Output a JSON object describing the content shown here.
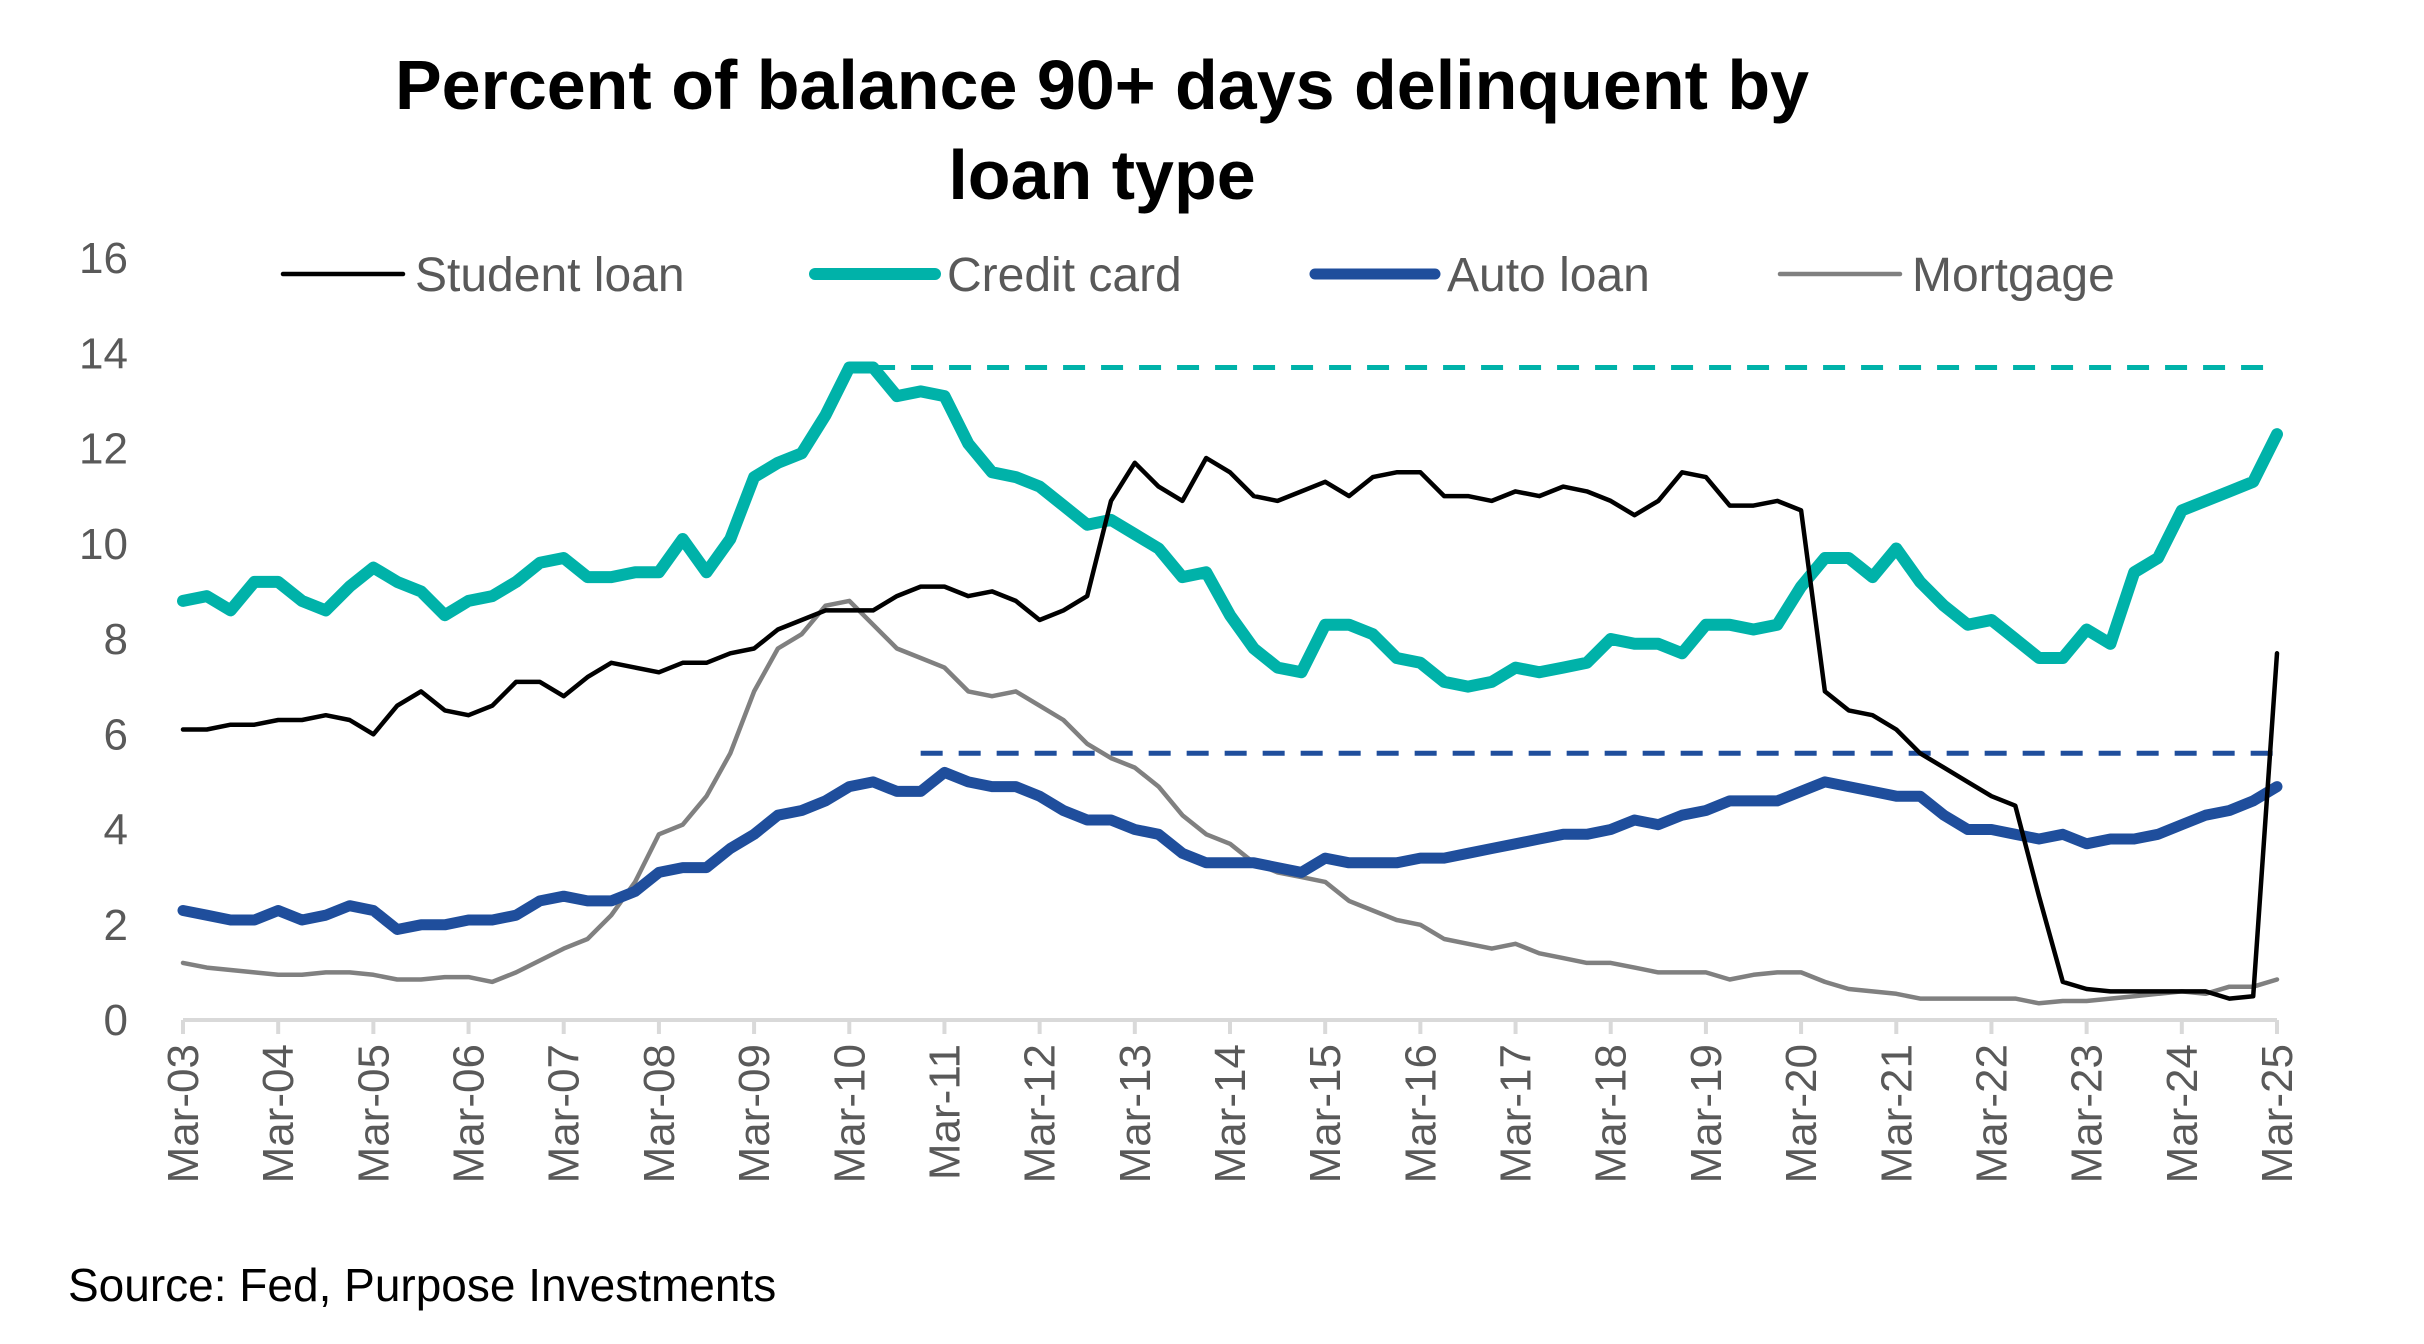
{
  "chart_data": {
    "type": "line",
    "title": "Percent of balance 90+ days delinquent by loan type",
    "title_lines": [
      "Percent of balance 90+ days delinquent by",
      "loan type"
    ],
    "source": "Source: Fed, Purpose Investments",
    "xlabel": "",
    "ylabel": "",
    "ylim": [
      0,
      16
    ],
    "yticks": [
      0,
      2,
      4,
      6,
      8,
      10,
      12,
      14,
      16
    ],
    "xticks": [
      "Mar-03",
      "Mar-04",
      "Mar-05",
      "Mar-06",
      "Mar-07",
      "Mar-08",
      "Mar-09",
      "Mar-10",
      "Mar-11",
      "Mar-12",
      "Mar-13",
      "Mar-14",
      "Mar-15",
      "Mar-16",
      "Mar-17",
      "Mar-18",
      "Mar-19",
      "Mar-20",
      "Mar-21",
      "Mar-22",
      "Mar-23",
      "Mar-24",
      "Mar-25"
    ],
    "x_frequency": "quarterly",
    "x_start": "Mar-03",
    "x_end": "Mar-25",
    "grid": false,
    "legend_position": "top",
    "series": [
      {
        "name": "Student loan",
        "color": "#000000",
        "values": [
          6.1,
          6.1,
          6.2,
          6.2,
          6.3,
          6.3,
          6.4,
          6.3,
          6.0,
          6.6,
          6.9,
          6.5,
          6.4,
          6.6,
          7.1,
          7.1,
          6.8,
          7.2,
          7.5,
          7.4,
          7.3,
          7.5,
          7.5,
          7.7,
          7.8,
          8.2,
          8.4,
          8.6,
          8.6,
          8.6,
          8.9,
          9.1,
          9.1,
          8.9,
          9.0,
          8.8,
          8.4,
          8.6,
          8.9,
          10.9,
          11.7,
          11.2,
          10.9,
          11.8,
          11.5,
          11.0,
          10.9,
          11.1,
          11.3,
          11.0,
          11.4,
          11.5,
          11.5,
          11.0,
          11.0,
          10.9,
          11.1,
          11.0,
          11.2,
          11.1,
          10.9,
          10.6,
          10.9,
          11.5,
          11.4,
          10.8,
          10.8,
          10.9,
          10.7,
          6.9,
          6.5,
          6.4,
          6.1,
          5.6,
          5.3,
          5.0,
          4.7,
          4.5,
          2.6,
          0.8,
          0.65,
          0.6,
          0.6,
          0.6,
          0.6,
          0.6,
          0.45,
          0.5,
          7.7
        ]
      },
      {
        "name": "Credit card",
        "color": "#00B2A9",
        "values": [
          8.8,
          8.9,
          8.6,
          9.2,
          9.2,
          8.8,
          8.6,
          9.1,
          9.5,
          9.2,
          9.0,
          8.5,
          8.8,
          8.9,
          9.2,
          9.6,
          9.7,
          9.3,
          9.3,
          9.4,
          9.4,
          10.1,
          9.4,
          10.1,
          11.4,
          11.7,
          11.9,
          12.7,
          13.7,
          13.7,
          13.1,
          13.2,
          13.1,
          12.1,
          11.5,
          11.4,
          11.2,
          10.8,
          10.4,
          10.5,
          10.2,
          9.9,
          9.3,
          9.4,
          8.5,
          7.8,
          7.4,
          7.3,
          8.3,
          8.3,
          8.1,
          7.6,
          7.5,
          7.1,
          7.0,
          7.1,
          7.4,
          7.3,
          7.4,
          7.5,
          8.0,
          7.9,
          7.9,
          7.7,
          8.3,
          8.3,
          8.2,
          8.3,
          9.1,
          9.7,
          9.7,
          9.3,
          9.9,
          9.2,
          8.7,
          8.3,
          8.4,
          8.0,
          7.6,
          7.6,
          8.2,
          7.9,
          9.4,
          9.7,
          10.7,
          10.9,
          11.1,
          11.3,
          12.3
        ]
      },
      {
        "name": "Auto loan",
        "color": "#1F4E9C",
        "values": [
          2.3,
          2.2,
          2.1,
          2.1,
          2.3,
          2.1,
          2.2,
          2.4,
          2.3,
          1.9,
          2.0,
          2.0,
          2.1,
          2.1,
          2.2,
          2.5,
          2.6,
          2.5,
          2.5,
          2.7,
          3.1,
          3.2,
          3.2,
          3.6,
          3.9,
          4.3,
          4.4,
          4.6,
          4.9,
          5.0,
          4.8,
          4.8,
          5.2,
          5.0,
          4.9,
          4.9,
          4.7,
          4.4,
          4.2,
          4.2,
          4.0,
          3.9,
          3.5,
          3.3,
          3.3,
          3.3,
          3.2,
          3.1,
          3.4,
          3.3,
          3.3,
          3.3,
          3.4,
          3.4,
          3.5,
          3.6,
          3.7,
          3.8,
          3.9,
          3.9,
          4.0,
          4.2,
          4.1,
          4.3,
          4.4,
          4.6,
          4.6,
          4.6,
          4.8,
          5.0,
          4.9,
          4.8,
          4.7,
          4.7,
          4.3,
          4.0,
          4.0,
          3.9,
          3.8,
          3.9,
          3.7,
          3.8,
          3.8,
          3.9,
          4.1,
          4.3,
          4.4,
          4.6,
          4.9
        ]
      },
      {
        "name": "Mortgage",
        "color": "#808080",
        "values": [
          1.2,
          1.1,
          1.05,
          1.0,
          0.95,
          0.95,
          1.0,
          1.0,
          0.95,
          0.85,
          0.85,
          0.9,
          0.9,
          0.8,
          1.0,
          1.25,
          1.5,
          1.7,
          2.2,
          2.9,
          3.9,
          4.1,
          4.7,
          5.6,
          6.9,
          7.8,
          8.1,
          8.7,
          8.8,
          8.3,
          7.8,
          7.6,
          7.4,
          6.9,
          6.8,
          6.9,
          6.6,
          6.3,
          5.8,
          5.5,
          5.3,
          4.9,
          4.3,
          3.9,
          3.7,
          3.3,
          3.1,
          3.0,
          2.9,
          2.5,
          2.3,
          2.1,
          2.0,
          1.7,
          1.6,
          1.5,
          1.6,
          1.4,
          1.3,
          1.2,
          1.2,
          1.1,
          1.0,
          1.0,
          1.0,
          0.85,
          0.95,
          1.0,
          1.0,
          0.8,
          0.65,
          0.6,
          0.55,
          0.45,
          0.45,
          0.45,
          0.45,
          0.45,
          0.35,
          0.4,
          0.4,
          0.45,
          0.5,
          0.55,
          0.6,
          0.55,
          0.7,
          0.7,
          0.85
        ]
      }
    ],
    "reference_lines": [
      {
        "series": "Credit card",
        "value": 13.7,
        "from": "Jun-10",
        "to": "Mar-25",
        "style": "dashed",
        "color": "#00B2A9"
      },
      {
        "series": "Auto loan",
        "value": 5.6,
        "from": "Dec-10",
        "to": "Mar-25",
        "style": "dashed",
        "color": "#1F4E9C"
      }
    ]
  }
}
